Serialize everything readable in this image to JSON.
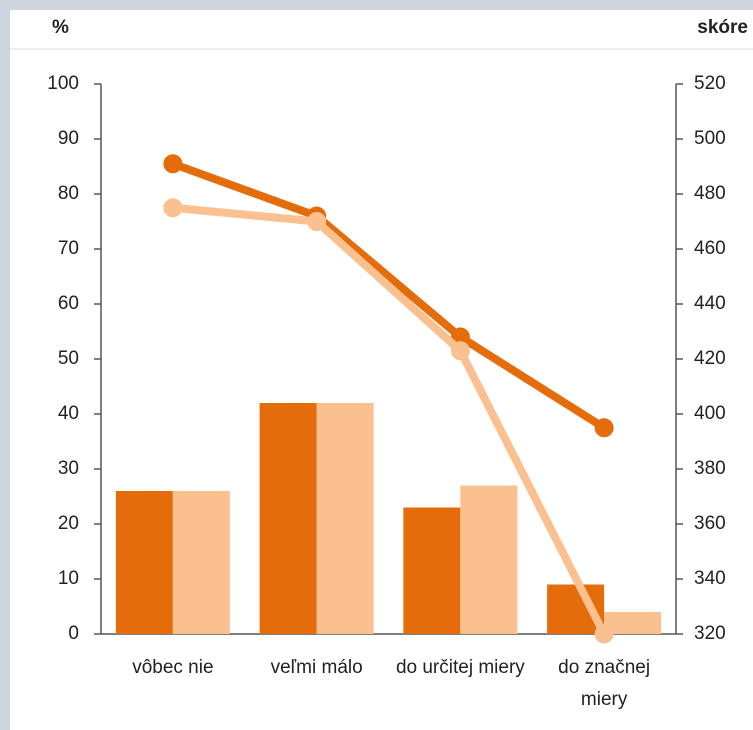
{
  "chart_data": {
    "type": "bar",
    "y_label": "%",
    "y2_label": "skóre",
    "categories": [
      "vôbec nie",
      "veľmi málo",
      "do určitej miery",
      "do značnej miery"
    ],
    "series": [
      {
        "type": "bar",
        "color": "#e46c0a",
        "values": [
          26,
          42,
          23,
          9
        ]
      },
      {
        "type": "bar",
        "color": "#fac090",
        "values": [
          26,
          42,
          27,
          4
        ]
      },
      {
        "type": "line",
        "axis": "y2",
        "color": "#e46c0a",
        "values": [
          491,
          472,
          428,
          395
        ]
      },
      {
        "type": "line",
        "axis": "y2",
        "color": "#fac090",
        "values": [
          475,
          470,
          423,
          320
        ]
      }
    ],
    "ylim": [
      0,
      100
    ],
    "yticks": [
      0,
      10,
      20,
      30,
      40,
      50,
      60,
      70,
      80,
      90,
      100
    ],
    "y2lim": [
      320,
      520
    ],
    "y2ticks": [
      320,
      340,
      360,
      380,
      400,
      420,
      440,
      460,
      480,
      500,
      520
    ]
  }
}
